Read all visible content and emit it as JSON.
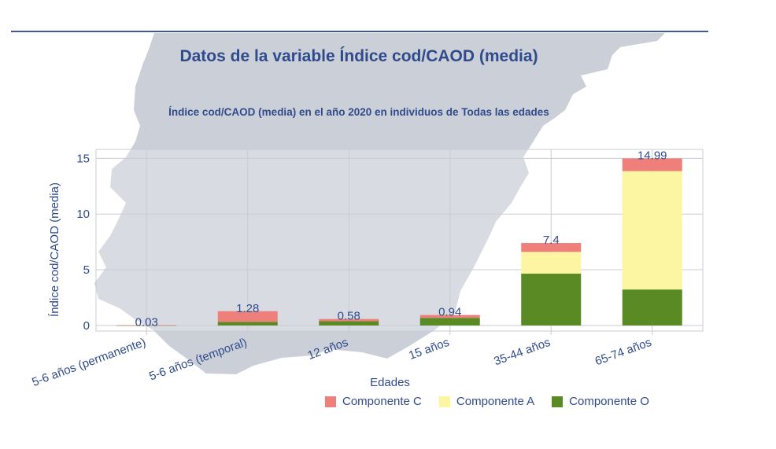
{
  "page": {
    "title": "Datos de la variable Índice cod/CAOD (media)"
  },
  "colors": {
    "componente_c": "#ef7f7a",
    "componente_a": "#fcf5a1",
    "componente_o": "#5a8a23",
    "text": "#2f4b8c",
    "grid": "#c9ccd3"
  },
  "chart_data": {
    "type": "bar",
    "stacked": true,
    "title": "Índice cod/CAOD (media) en el año 2020 en individuos de Todas las edades",
    "xlabel": "Edades",
    "ylabel": "Índice cod/CAOD (media)",
    "ylim": [
      -0.5,
      15.8
    ],
    "yticks": [
      0,
      5,
      10,
      15
    ],
    "grid": true,
    "legend_position": "bottom-right",
    "categories": [
      "5-6 años (permanente)",
      "5-6 años (temporal)",
      "12 años",
      "15 años",
      "35-44 años",
      "65-74 años"
    ],
    "series": [
      {
        "name": "Componente O",
        "values": [
          0.01,
          0.32,
          0.38,
          0.68,
          4.65,
          3.23
        ]
      },
      {
        "name": "Componente A",
        "values": [
          0.0,
          0.0,
          0.0,
          0.0,
          1.95,
          10.62
        ]
      },
      {
        "name": "Componente C",
        "values": [
          0.02,
          0.96,
          0.2,
          0.26,
          0.8,
          1.14
        ]
      }
    ],
    "totals": [
      0.03,
      1.28,
      0.58,
      0.94,
      7.4,
      14.99
    ],
    "total_labels": [
      "0.03",
      "1.28",
      "0.58",
      "0.94",
      "7.4",
      "14.99"
    ],
    "legend_order": [
      "Componente C",
      "Componente A",
      "Componente O"
    ]
  }
}
